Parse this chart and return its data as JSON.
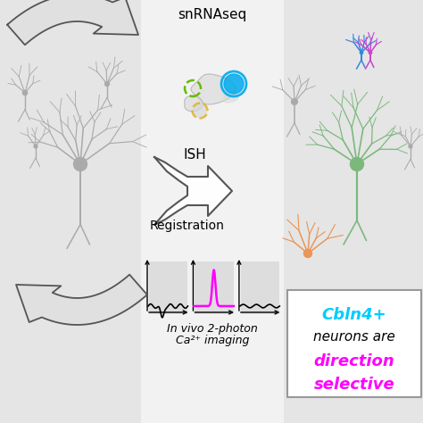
{
  "bg_left": "#e5e5e5",
  "bg_center": "#f2f2f2",
  "bg_right": "#e5e5e5",
  "text_snrnaseq": "snRNAseq",
  "text_ish": "ISH",
  "text_registration": "Registration",
  "text_invivo_1": "In vivo 2-photon",
  "text_invivo_2": "Ca²⁺ imaging",
  "text_cbln4": "Cbln4+",
  "text_neurons": "neurons are",
  "text_direction": "direction",
  "text_selective": "selective",
  "color_cyan": "#00CCFF",
  "color_magenta": "#FF00FF",
  "color_green_neuron": "#7CB87C",
  "color_orange_neuron": "#E8965A",
  "color_blue_neuron": "#3388DD",
  "color_purple_neuron": "#CC44CC",
  "color_gray_neuron": "#aaaaaa",
  "color_arrow_fill": "#e0e0e0",
  "color_arrow_edge": "#555555",
  "color_circle_green": "#66BB00",
  "color_circle_yellow": "#DDAA00",
  "color_circle_blue": "#00AAEE"
}
